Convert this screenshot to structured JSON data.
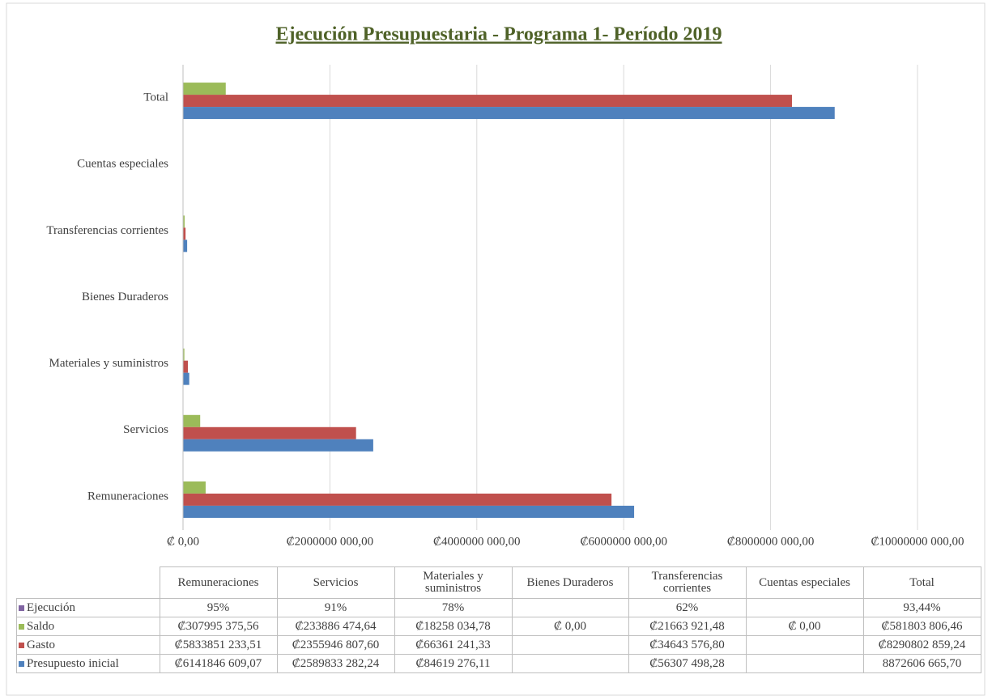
{
  "chart_data": {
    "type": "bar",
    "orientation": "horizontal",
    "title": "Ejecución Presupuestaria - Programa 1- Período 2019",
    "categories": [
      "Remuneraciones",
      "Servicios",
      "Materiales y suministros",
      "Bienes Duraderos",
      "Transferencias corrientes",
      "Cuentas especiales",
      "Total"
    ],
    "series": [
      {
        "name": "Ejecución",
        "color": "#8064a2",
        "values": [
          95,
          91,
          78,
          null,
          62,
          null,
          93.44
        ],
        "value_labels": [
          "95%",
          "91%",
          "78%",
          null,
          "62%",
          null,
          "93,44%"
        ]
      },
      {
        "name": "Saldo",
        "color": "#9bbb59",
        "values": [
          307995375.56,
          233886474.64,
          18258034.78,
          0,
          21663921.48,
          0,
          581803806.46
        ],
        "value_labels": [
          "₡307995 375,56",
          "₡233886 474,64",
          "₡18258 034,78",
          "₡ 0,00",
          "₡21663 921,48",
          "₡ 0,00",
          "₡581803 806,46"
        ]
      },
      {
        "name": "Gasto",
        "color": "#c0504d",
        "values": [
          5833851233.51,
          2355946807.6,
          66361241.33,
          null,
          34643576.8,
          null,
          8290802859.24
        ],
        "value_labels": [
          "₡5833851 233,51",
          "₡2355946 807,60",
          "₡66361 241,33",
          null,
          "₡34643 576,80",
          null,
          "₡8290802 859,24"
        ]
      },
      {
        "name": "Presupuesto inicial",
        "color": "#4f81bd",
        "values": [
          6141846609.07,
          2589833282.24,
          84619276.11,
          null,
          56307498.28,
          null,
          8872606665.7
        ],
        "value_labels": [
          "₡6141846 609,07",
          "₡2589833 282,24",
          "₡84619 276,11",
          null,
          "₡56307 498,28",
          null,
          "8872606 665,70"
        ]
      }
    ],
    "xlim": [
      0,
      10000000000
    ],
    "xticks": [
      {
        "value": 0,
        "label": "₡ 0,00"
      },
      {
        "value": 2000000000,
        "label": "₡2000000 000,00"
      },
      {
        "value": 4000000000,
        "label": "₡4000000 000,00"
      },
      {
        "value": 6000000000,
        "label": "₡6000000 000,00"
      },
      {
        "value": 8000000000,
        "label": "₡8000000 000,00"
      },
      {
        "value": 10000000000,
        "label": "₡10000000 000,00"
      }
    ],
    "grid": true
  }
}
